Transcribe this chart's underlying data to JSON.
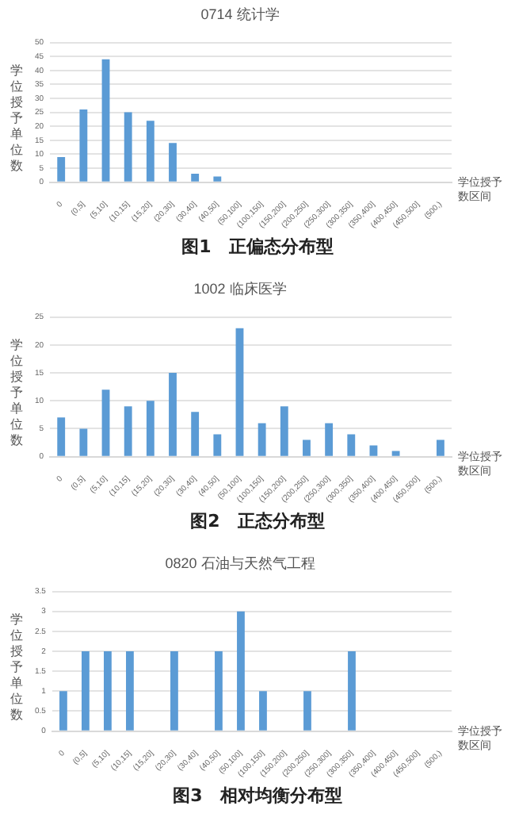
{
  "chart_data": [
    {
      "type": "bar",
      "title": "0714 统计学",
      "xlabel": "学位授予数区间",
      "ylabel": "学位授予单位数",
      "annotations": [
        "图1　正偏态分布型"
      ],
      "categories": [
        "0",
        "(0,5]",
        "(5,10]",
        "(10,15]",
        "(15,20]",
        "(20,30]",
        "(30,40]",
        "(40,50]",
        "(50,100]",
        "(100,150]",
        "(150,200]",
        "(200,250]",
        "(250,300]",
        "(300,350]",
        "(350,400]",
        "(400,450]",
        "(450,500]",
        "(500,)"
      ],
      "values": [
        9,
        26,
        44,
        25,
        22,
        14,
        3,
        2,
        0,
        0,
        0,
        0,
        0,
        0,
        0,
        0,
        0,
        0
      ],
      "color": "#5b9bd5",
      "ylim": [
        0,
        50
      ],
      "yticks": [
        0,
        5,
        10,
        15,
        20,
        25,
        30,
        35,
        40,
        45,
        50
      ],
      "grid": "y",
      "legend": false
    },
    {
      "type": "bar",
      "title": "1002 临床医学",
      "xlabel": "学位授予数区间",
      "ylabel": "学位授予单位数",
      "annotations": [
        "图2　正态分布型"
      ],
      "categories": [
        "0",
        "(0,5]",
        "(5,10]",
        "(10,15]",
        "(15,20]",
        "(20,30]",
        "(30,40]",
        "(40,50]",
        "(50,100]",
        "(100,150]",
        "(150,200]",
        "(200,250]",
        "(250,300]",
        "(300,350]",
        "(350,400]",
        "(400,450]",
        "(450,500]",
        "(500,)"
      ],
      "values": [
        7,
        5,
        12,
        9,
        10,
        15,
        8,
        4,
        23,
        6,
        9,
        3,
        6,
        4,
        2,
        1,
        0,
        3
      ],
      "color": "#5b9bd5",
      "ylim": [
        0,
        25
      ],
      "yticks": [
        0,
        5,
        10,
        15,
        20,
        25
      ],
      "grid": "y",
      "legend": false
    },
    {
      "type": "bar",
      "title": "0820 石油与天然气工程",
      "xlabel": "学位授予数区间",
      "ylabel": "学位授予单位数",
      "annotations": [
        "图3　相对均衡分布型"
      ],
      "categories": [
        "0",
        "(0,5]",
        "(5,10]",
        "(10,15]",
        "(15,20]",
        "(20,30]",
        "(30,40]",
        "(40,50]",
        "(50,100]",
        "(100,150]",
        "(150,200]",
        "(200,250]",
        "(250,300]",
        "(300,350]",
        "(350,400]",
        "(400,450]",
        "(450,500]",
        "(500,)"
      ],
      "values": [
        1,
        2,
        2,
        2,
        0,
        2,
        0,
        2,
        3,
        1,
        0,
        1,
        0,
        2,
        0,
        0,
        0,
        0
      ],
      "color": "#5b9bd5",
      "ylim": [
        0,
        3.5
      ],
      "yticks": [
        0,
        0.5,
        1,
        1.5,
        2,
        2.5,
        3,
        3.5
      ],
      "grid": "y",
      "legend": false
    }
  ]
}
